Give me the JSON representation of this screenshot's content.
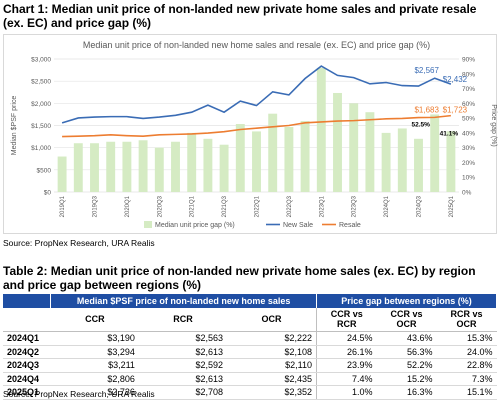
{
  "chart_heading": "Chart 1: Median unit price of non-landed new private home sales and private resale (ex. EC) and price gap (%)",
  "chart_source": "Source: PropNex Research, URA Realis",
  "table_heading": "Table 2: Median unit price of non-landed new private home sales (ex. EC) by region and price gap between regions (%)",
  "table_source": "Source: PropNex Research, URA Realis",
  "colors": {
    "new_sale": "#3a6cb5",
    "resale": "#ed7d31",
    "gap_bar": "#d5ebc3",
    "table_header": "#1f4ea3"
  },
  "chart_data": {
    "type": "bar",
    "title": "Median unit price of non-landed new home sales and resale (ex. EC) and price gap (%)",
    "ylabel": "Median $PSF price",
    "y2label": "Price gap (%)",
    "ylim": [
      0,
      3000
    ],
    "y2lim": [
      0,
      90
    ],
    "yticks": [
      "$0",
      "$500",
      "$1,000",
      "$1,500",
      "$2,000",
      "$2,500",
      "$3,000"
    ],
    "y2ticks": [
      "0%",
      "10%",
      "20%",
      "30%",
      "40%",
      "50%",
      "60%",
      "70%",
      "80%",
      "90%"
    ],
    "categories": [
      "2019Q1",
      "2019Q2",
      "2019Q3",
      "2019Q4",
      "2020Q1",
      "2020Q2",
      "2020Q3",
      "2020Q4",
      "2021Q1",
      "2021Q2",
      "2021Q3",
      "2021Q4",
      "2022Q1",
      "2022Q2",
      "2022Q3",
      "2022Q4",
      "2023Q1",
      "2023Q2",
      "2023Q3",
      "2023Q4",
      "2024Q1",
      "2024Q2",
      "2024Q3",
      "2024Q4",
      "2025Q1"
    ],
    "x_tick_labels": [
      "2019Q1",
      "2019Q3",
      "2020Q1",
      "2020Q3",
      "2021Q1",
      "2021Q3",
      "2022Q1",
      "2022Q3",
      "2023Q1",
      "2023Q3",
      "2024Q1",
      "2024Q3",
      "2025Q1"
    ],
    "series": [
      {
        "name": "Median unit price gap (%)",
        "type": "bar",
        "axis": "right",
        "values": [
          24,
          33,
          33,
          34,
          34,
          35,
          30,
          34,
          40,
          36,
          32,
          46,
          41,
          53,
          44,
          48,
          84,
          67,
          60,
          54,
          40,
          43,
          36,
          52.5,
          41.1
        ]
      },
      {
        "name": "New Sale",
        "type": "line",
        "axis": "left",
        "values": [
          1560,
          1670,
          1690,
          1700,
          1700,
          1660,
          1690,
          1730,
          1800,
          1960,
          1800,
          2050,
          1950,
          2260,
          2190,
          2560,
          2840,
          2630,
          2580,
          2440,
          2470,
          2400,
          2390,
          2567,
          2432
        ]
      },
      {
        "name": "Resale",
        "type": "line",
        "axis": "left",
        "values": [
          1250,
          1260,
          1270,
          1290,
          1270,
          1260,
          1290,
          1300,
          1310,
          1330,
          1360,
          1410,
          1440,
          1470,
          1500,
          1560,
          1580,
          1600,
          1610,
          1630,
          1650,
          1660,
          1680,
          1683,
          1723
        ]
      }
    ],
    "annotations": [
      {
        "series": "New Sale",
        "label": "$2,567",
        "value": 2567,
        "category": "2024Q4"
      },
      {
        "series": "New Sale",
        "label": "$2,432",
        "value": 2432,
        "category": "2025Q1"
      },
      {
        "series": "Resale",
        "label": "$1,683",
        "value": 1683,
        "category": "2024Q4"
      },
      {
        "series": "Resale",
        "label": "$1,723",
        "value": 1723,
        "category": "2025Q1"
      },
      {
        "series": "Median unit price gap (%)",
        "label": "52.5%",
        "value": 52.5,
        "category": "2024Q4"
      },
      {
        "series": "Median unit price gap (%)",
        "label": "41.1%",
        "value": 41.1,
        "category": "2025Q1"
      }
    ],
    "legend_placement": "bottom",
    "grid": true
  },
  "table": {
    "group_headers": [
      "Median $PSF price of non-landed new home sales",
      "Price gap between regions (%)"
    ],
    "columns": [
      "CCR",
      "RCR",
      "OCR",
      "CCR vs RCR",
      "CCR vs OCR",
      "RCR vs OCR"
    ],
    "rows": [
      {
        "quarter": "2024Q1",
        "ccr": "$3,190",
        "rcr": "$2,563",
        "ocr": "$2,222",
        "ccr_rcr": "24.5%",
        "ccr_ocr": "43.6%",
        "rcr_ocr": "15.3%"
      },
      {
        "quarter": "2024Q2",
        "ccr": "$3,294",
        "rcr": "$2,613",
        "ocr": "$2,108",
        "ccr_rcr": "26.1%",
        "ccr_ocr": "56.3%",
        "rcr_ocr": "24.0%"
      },
      {
        "quarter": "2024Q3",
        "ccr": "$3,211",
        "rcr": "$2,592",
        "ocr": "$2,110",
        "ccr_rcr": "23.9%",
        "ccr_ocr": "52.2%",
        "rcr_ocr": "22.8%"
      },
      {
        "quarter": "2024Q4",
        "ccr": "$2,806",
        "rcr": "$2,613",
        "ocr": "$2,435",
        "ccr_rcr": "7.4%",
        "ccr_ocr": "15.2%",
        "rcr_ocr": "7.3%"
      },
      {
        "quarter": "2025Q1",
        "ccr": "$2,736",
        "rcr": "$2,708",
        "ocr": "$2,352",
        "ccr_rcr": "1.0%",
        "ccr_ocr": "16.3%",
        "rcr_ocr": "15.1%"
      }
    ]
  }
}
